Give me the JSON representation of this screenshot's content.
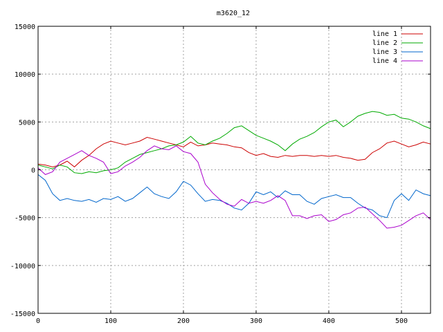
{
  "chart_data": {
    "type": "line",
    "title": "m3620_12",
    "xlim": [
      0,
      540
    ],
    "ylim": [
      -15000,
      15000
    ],
    "x_ticks": [
      0,
      100,
      200,
      300,
      400,
      500
    ],
    "y_ticks": [
      -15000,
      -10000,
      -5000,
      0,
      5000,
      10000,
      15000
    ],
    "grid": true,
    "legend_position": "top-right",
    "series": [
      {
        "name": "line 1",
        "color": "#cc0000",
        "points": [
          [
            0,
            600
          ],
          [
            10,
            500
          ],
          [
            20,
            300
          ],
          [
            30,
            500
          ],
          [
            40,
            900
          ],
          [
            50,
            300
          ],
          [
            60,
            1000
          ],
          [
            70,
            1500
          ],
          [
            80,
            2200
          ],
          [
            90,
            2700
          ],
          [
            100,
            3000
          ],
          [
            110,
            2800
          ],
          [
            120,
            2600
          ],
          [
            130,
            2800
          ],
          [
            140,
            3000
          ],
          [
            150,
            3400
          ],
          [
            160,
            3200
          ],
          [
            170,
            3000
          ],
          [
            180,
            2800
          ],
          [
            190,
            2600
          ],
          [
            200,
            2400
          ],
          [
            210,
            2900
          ],
          [
            220,
            2500
          ],
          [
            230,
            2600
          ],
          [
            240,
            2800
          ],
          [
            250,
            2700
          ],
          [
            260,
            2600
          ],
          [
            270,
            2400
          ],
          [
            280,
            2300
          ],
          [
            290,
            1800
          ],
          [
            300,
            1500
          ],
          [
            310,
            1700
          ],
          [
            320,
            1400
          ],
          [
            330,
            1300
          ],
          [
            340,
            1500
          ],
          [
            350,
            1400
          ],
          [
            360,
            1500
          ],
          [
            370,
            1500
          ],
          [
            380,
            1400
          ],
          [
            390,
            1500
          ],
          [
            400,
            1400
          ],
          [
            410,
            1500
          ],
          [
            420,
            1300
          ],
          [
            430,
            1200
          ],
          [
            440,
            1000
          ],
          [
            450,
            1100
          ],
          [
            460,
            1800
          ],
          [
            470,
            2200
          ],
          [
            480,
            2800
          ],
          [
            490,
            3000
          ],
          [
            500,
            2700
          ],
          [
            510,
            2400
          ],
          [
            520,
            2600
          ],
          [
            530,
            2900
          ],
          [
            540,
            2700
          ]
        ]
      },
      {
        "name": "line 2",
        "color": "#00aa00",
        "points": [
          [
            0,
            500
          ],
          [
            10,
            300
          ],
          [
            20,
            100
          ],
          [
            30,
            500
          ],
          [
            40,
            300
          ],
          [
            50,
            -300
          ],
          [
            60,
            -400
          ],
          [
            70,
            -200
          ],
          [
            80,
            -300
          ],
          [
            90,
            -100
          ],
          [
            100,
            0
          ],
          [
            110,
            200
          ],
          [
            120,
            800
          ],
          [
            130,
            1200
          ],
          [
            140,
            1600
          ],
          [
            150,
            1800
          ],
          [
            160,
            2000
          ],
          [
            170,
            2200
          ],
          [
            180,
            2500
          ],
          [
            190,
            2600
          ],
          [
            200,
            2900
          ],
          [
            210,
            3500
          ],
          [
            220,
            2800
          ],
          [
            230,
            2600
          ],
          [
            240,
            3000
          ],
          [
            250,
            3300
          ],
          [
            260,
            3800
          ],
          [
            270,
            4400
          ],
          [
            280,
            4600
          ],
          [
            290,
            4100
          ],
          [
            300,
            3600
          ],
          [
            310,
            3300
          ],
          [
            320,
            3000
          ],
          [
            330,
            2600
          ],
          [
            340,
            2000
          ],
          [
            350,
            2700
          ],
          [
            360,
            3200
          ],
          [
            370,
            3500
          ],
          [
            380,
            3900
          ],
          [
            390,
            4500
          ],
          [
            400,
            5000
          ],
          [
            410,
            5200
          ],
          [
            420,
            4500
          ],
          [
            430,
            5000
          ],
          [
            440,
            5600
          ],
          [
            450,
            5900
          ],
          [
            460,
            6100
          ],
          [
            470,
            6000
          ],
          [
            480,
            5700
          ],
          [
            490,
            5800
          ],
          [
            500,
            5400
          ],
          [
            510,
            5300
          ],
          [
            520,
            5000
          ],
          [
            530,
            4600
          ],
          [
            540,
            4300
          ]
        ]
      },
      {
        "name": "line 3",
        "color": "#0066cc",
        "points": [
          [
            0,
            -500
          ],
          [
            10,
            -1100
          ],
          [
            20,
            -2500
          ],
          [
            30,
            -3200
          ],
          [
            40,
            -3000
          ],
          [
            50,
            -3200
          ],
          [
            60,
            -3300
          ],
          [
            70,
            -3100
          ],
          [
            80,
            -3400
          ],
          [
            90,
            -3000
          ],
          [
            100,
            -3100
          ],
          [
            110,
            -2800
          ],
          [
            120,
            -3300
          ],
          [
            130,
            -3000
          ],
          [
            140,
            -2400
          ],
          [
            150,
            -1800
          ],
          [
            160,
            -2500
          ],
          [
            170,
            -2800
          ],
          [
            180,
            -3000
          ],
          [
            190,
            -2300
          ],
          [
            200,
            -1200
          ],
          [
            210,
            -1600
          ],
          [
            220,
            -2500
          ],
          [
            230,
            -3300
          ],
          [
            240,
            -3100
          ],
          [
            250,
            -3200
          ],
          [
            260,
            -3500
          ],
          [
            270,
            -4000
          ],
          [
            280,
            -4200
          ],
          [
            290,
            -3500
          ],
          [
            300,
            -2300
          ],
          [
            310,
            -2600
          ],
          [
            320,
            -2300
          ],
          [
            330,
            -2900
          ],
          [
            340,
            -2200
          ],
          [
            350,
            -2600
          ],
          [
            360,
            -2600
          ],
          [
            370,
            -3300
          ],
          [
            380,
            -3600
          ],
          [
            390,
            -3000
          ],
          [
            400,
            -2800
          ],
          [
            410,
            -2600
          ],
          [
            420,
            -2900
          ],
          [
            430,
            -2900
          ],
          [
            440,
            -3500
          ],
          [
            450,
            -4000
          ],
          [
            460,
            -4200
          ],
          [
            470,
            -4800
          ],
          [
            480,
            -5000
          ],
          [
            490,
            -3200
          ],
          [
            500,
            -2500
          ],
          [
            510,
            -3200
          ],
          [
            520,
            -2100
          ],
          [
            530,
            -2500
          ],
          [
            540,
            -2700
          ]
        ]
      },
      {
        "name": "line 4",
        "color": "#aa00cc",
        "points": [
          [
            0,
            200
          ],
          [
            10,
            -500
          ],
          [
            20,
            -200
          ],
          [
            30,
            800
          ],
          [
            40,
            1200
          ],
          [
            50,
            1600
          ],
          [
            60,
            2000
          ],
          [
            70,
            1500
          ],
          [
            80,
            1200
          ],
          [
            90,
            800
          ],
          [
            100,
            -400
          ],
          [
            110,
            -200
          ],
          [
            120,
            400
          ],
          [
            130,
            800
          ],
          [
            140,
            1300
          ],
          [
            150,
            2000
          ],
          [
            160,
            2500
          ],
          [
            170,
            2200
          ],
          [
            180,
            2100
          ],
          [
            190,
            2500
          ],
          [
            200,
            1900
          ],
          [
            210,
            1700
          ],
          [
            220,
            800
          ],
          [
            230,
            -1500
          ],
          [
            240,
            -2400
          ],
          [
            250,
            -3100
          ],
          [
            260,
            -3600
          ],
          [
            270,
            -3800
          ],
          [
            280,
            -3100
          ],
          [
            290,
            -3500
          ],
          [
            300,
            -3300
          ],
          [
            310,
            -3500
          ],
          [
            320,
            -3200
          ],
          [
            330,
            -2700
          ],
          [
            340,
            -3200
          ],
          [
            350,
            -4800
          ],
          [
            360,
            -4800
          ],
          [
            370,
            -5100
          ],
          [
            380,
            -4800
          ],
          [
            390,
            -4700
          ],
          [
            400,
            -5400
          ],
          [
            410,
            -5200
          ],
          [
            420,
            -4700
          ],
          [
            430,
            -4500
          ],
          [
            440,
            -4000
          ],
          [
            450,
            -3900
          ],
          [
            460,
            -4600
          ],
          [
            470,
            -5300
          ],
          [
            480,
            -6100
          ],
          [
            490,
            -6000
          ],
          [
            500,
            -5800
          ],
          [
            510,
            -5300
          ],
          [
            520,
            -4800
          ],
          [
            530,
            -4500
          ],
          [
            540,
            -5200
          ]
        ]
      }
    ]
  }
}
